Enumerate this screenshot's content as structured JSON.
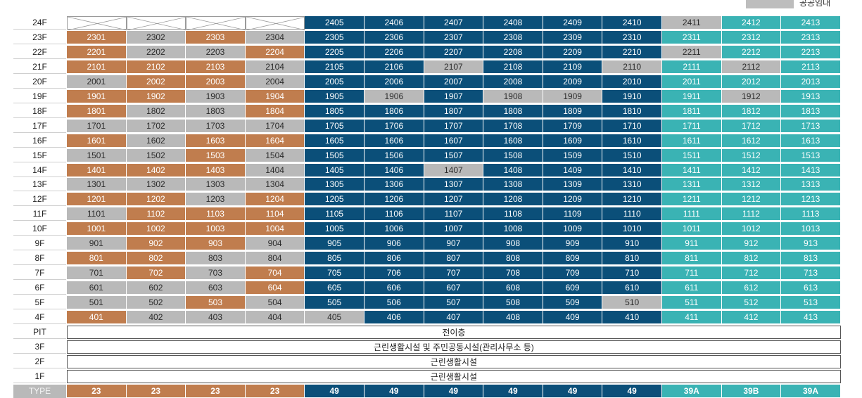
{
  "legend": {
    "label": "공공임대"
  },
  "columns": 13,
  "colors": {
    "orange": "#c07d4e",
    "gray": "#b9b9b9",
    "navy": "#0b4f79",
    "teal": "#3ab3b4"
  },
  "floors": [
    {
      "floor": "24F",
      "units": [
        "",
        "",
        "",
        "",
        "2405",
        "2406",
        "2407",
        "2408",
        "2409",
        "2410",
        "2411",
        "2412",
        "2413"
      ],
      "colors": [
        "e",
        "e",
        "e",
        "e",
        "n",
        "n",
        "n",
        "n",
        "n",
        "n",
        "g",
        "t",
        "t"
      ]
    },
    {
      "floor": "23F",
      "units": [
        "2301",
        "2302",
        "2303",
        "2304",
        "2305",
        "2306",
        "2307",
        "2308",
        "2309",
        "2310",
        "2311",
        "2312",
        "2313"
      ],
      "colors": [
        "o",
        "g",
        "o",
        "g",
        "n",
        "n",
        "n",
        "n",
        "n",
        "n",
        "t",
        "t",
        "t"
      ]
    },
    {
      "floor": "22F",
      "units": [
        "2201",
        "2202",
        "2203",
        "2204",
        "2205",
        "2206",
        "2207",
        "2208",
        "2209",
        "2210",
        "2211",
        "2212",
        "2213"
      ],
      "colors": [
        "o",
        "g",
        "g",
        "o",
        "n",
        "n",
        "n",
        "n",
        "n",
        "n",
        "g",
        "t",
        "t"
      ]
    },
    {
      "floor": "21F",
      "units": [
        "2101",
        "2102",
        "2103",
        "2104",
        "2105",
        "2106",
        "2107",
        "2108",
        "2109",
        "2110",
        "2111",
        "2112",
        "2113"
      ],
      "colors": [
        "o",
        "o",
        "o",
        "g",
        "n",
        "n",
        "g",
        "n",
        "n",
        "g",
        "t",
        "g",
        "t"
      ]
    },
    {
      "floor": "20F",
      "units": [
        "2001",
        "2002",
        "2003",
        "2004",
        "2005",
        "2006",
        "2007",
        "2008",
        "2009",
        "2010",
        "2011",
        "2012",
        "2013"
      ],
      "colors": [
        "g",
        "o",
        "o",
        "g",
        "n",
        "n",
        "n",
        "n",
        "n",
        "n",
        "t",
        "t",
        "t"
      ]
    },
    {
      "floor": "19F",
      "units": [
        "1901",
        "1902",
        "1903",
        "1904",
        "1905",
        "1906",
        "1907",
        "1908",
        "1909",
        "1910",
        "1911",
        "1912",
        "1913"
      ],
      "colors": [
        "o",
        "o",
        "g",
        "o",
        "n",
        "g",
        "n",
        "g",
        "g",
        "n",
        "t",
        "g",
        "t"
      ]
    },
    {
      "floor": "18F",
      "units": [
        "1801",
        "1802",
        "1803",
        "1804",
        "1805",
        "1806",
        "1807",
        "1808",
        "1809",
        "1810",
        "1811",
        "1812",
        "1813"
      ],
      "colors": [
        "o",
        "g",
        "g",
        "o",
        "n",
        "n",
        "n",
        "n",
        "n",
        "n",
        "t",
        "t",
        "t"
      ]
    },
    {
      "floor": "17F",
      "units": [
        "1701",
        "1702",
        "1703",
        "1704",
        "1705",
        "1706",
        "1707",
        "1708",
        "1709",
        "1710",
        "1711",
        "1712",
        "1713"
      ],
      "colors": [
        "g",
        "g",
        "g",
        "g",
        "n",
        "n",
        "n",
        "n",
        "n",
        "n",
        "t",
        "t",
        "t"
      ]
    },
    {
      "floor": "16F",
      "units": [
        "1601",
        "1602",
        "1603",
        "1604",
        "1605",
        "1606",
        "1607",
        "1608",
        "1609",
        "1610",
        "1611",
        "1612",
        "1613"
      ],
      "colors": [
        "o",
        "g",
        "o",
        "o",
        "n",
        "n",
        "n",
        "n",
        "n",
        "n",
        "t",
        "t",
        "t"
      ]
    },
    {
      "floor": "15F",
      "units": [
        "1501",
        "1502",
        "1503",
        "1504",
        "1505",
        "1506",
        "1507",
        "1508",
        "1509",
        "1510",
        "1511",
        "1512",
        "1513"
      ],
      "colors": [
        "g",
        "g",
        "o",
        "g",
        "n",
        "n",
        "n",
        "n",
        "n",
        "n",
        "t",
        "t",
        "t"
      ]
    },
    {
      "floor": "14F",
      "units": [
        "1401",
        "1402",
        "1403",
        "1404",
        "1405",
        "1406",
        "1407",
        "1408",
        "1409",
        "1410",
        "1411",
        "1412",
        "1413"
      ],
      "colors": [
        "o",
        "o",
        "o",
        "g",
        "n",
        "n",
        "g",
        "n",
        "n",
        "n",
        "t",
        "t",
        "t"
      ]
    },
    {
      "floor": "13F",
      "units": [
        "1301",
        "1302",
        "1303",
        "1304",
        "1305",
        "1306",
        "1307",
        "1308",
        "1309",
        "1310",
        "1311",
        "1312",
        "1313"
      ],
      "colors": [
        "g",
        "g",
        "g",
        "g",
        "n",
        "n",
        "n",
        "n",
        "n",
        "n",
        "t",
        "t",
        "t"
      ]
    },
    {
      "floor": "12F",
      "units": [
        "1201",
        "1202",
        "1203",
        "1204",
        "1205",
        "1206",
        "1207",
        "1208",
        "1209",
        "1210",
        "1211",
        "1212",
        "1213"
      ],
      "colors": [
        "o",
        "o",
        "g",
        "o",
        "n",
        "n",
        "n",
        "n",
        "n",
        "n",
        "t",
        "t",
        "t"
      ]
    },
    {
      "floor": "11F",
      "units": [
        "1101",
        "1102",
        "1103",
        "1104",
        "1105",
        "1106",
        "1107",
        "1108",
        "1109",
        "1110",
        "1111",
        "1112",
        "1113"
      ],
      "colors": [
        "g",
        "o",
        "o",
        "o",
        "n",
        "n",
        "n",
        "n",
        "n",
        "n",
        "t",
        "t",
        "t"
      ]
    },
    {
      "floor": "10F",
      "units": [
        "1001",
        "1002",
        "1003",
        "1004",
        "1005",
        "1006",
        "1007",
        "1008",
        "1009",
        "1010",
        "1011",
        "1012",
        "1013"
      ],
      "colors": [
        "o",
        "o",
        "o",
        "o",
        "n",
        "n",
        "n",
        "n",
        "n",
        "n",
        "t",
        "t",
        "t"
      ]
    },
    {
      "floor": "9F",
      "units": [
        "901",
        "902",
        "903",
        "904",
        "905",
        "906",
        "907",
        "908",
        "909",
        "910",
        "911",
        "912",
        "913"
      ],
      "colors": [
        "g",
        "o",
        "o",
        "g",
        "n",
        "n",
        "n",
        "n",
        "n",
        "n",
        "t",
        "t",
        "t"
      ]
    },
    {
      "floor": "8F",
      "units": [
        "801",
        "802",
        "803",
        "804",
        "805",
        "806",
        "807",
        "808",
        "809",
        "810",
        "811",
        "812",
        "813"
      ],
      "colors": [
        "o",
        "o",
        "g",
        "g",
        "n",
        "n",
        "n",
        "n",
        "n",
        "n",
        "t",
        "t",
        "t"
      ]
    },
    {
      "floor": "7F",
      "units": [
        "701",
        "702",
        "703",
        "704",
        "705",
        "706",
        "707",
        "708",
        "709",
        "710",
        "711",
        "712",
        "713"
      ],
      "colors": [
        "g",
        "o",
        "g",
        "o",
        "n",
        "n",
        "n",
        "n",
        "n",
        "n",
        "t",
        "t",
        "t"
      ]
    },
    {
      "floor": "6F",
      "units": [
        "601",
        "602",
        "603",
        "604",
        "605",
        "606",
        "607",
        "608",
        "609",
        "610",
        "611",
        "612",
        "613"
      ],
      "colors": [
        "g",
        "g",
        "g",
        "o",
        "n",
        "n",
        "n",
        "n",
        "n",
        "n",
        "t",
        "t",
        "t"
      ]
    },
    {
      "floor": "5F",
      "units": [
        "501",
        "502",
        "503",
        "504",
        "505",
        "506",
        "507",
        "508",
        "509",
        "510",
        "511",
        "512",
        "513"
      ],
      "colors": [
        "g",
        "g",
        "o",
        "g",
        "n",
        "n",
        "n",
        "n",
        "n",
        "g",
        "t",
        "t",
        "t"
      ]
    },
    {
      "floor": "4F",
      "units": [
        "401",
        "402",
        "403",
        "404",
        "405",
        "406",
        "407",
        "408",
        "409",
        "410",
        "411",
        "412",
        "413"
      ],
      "colors": [
        "o",
        "g",
        "g",
        "g",
        "g",
        "n",
        "n",
        "n",
        "n",
        "n",
        "t",
        "t",
        "t"
      ]
    }
  ],
  "special_floors": [
    {
      "floor": "PIT",
      "label": "전이층"
    },
    {
      "floor": "3F",
      "label": "근린생활시설 및 주민공동시설(관리사무소 등)"
    },
    {
      "floor": "2F",
      "label": "근린생활시설"
    },
    {
      "floor": "1F",
      "label": "근린생활시설"
    }
  ],
  "type_row": {
    "label": "TYPE",
    "values": [
      "23",
      "23",
      "23",
      "23",
      "49",
      "49",
      "49",
      "49",
      "49",
      "49",
      "39A",
      "39B",
      "39A"
    ],
    "colors": [
      "o",
      "o",
      "o",
      "o",
      "n",
      "n",
      "n",
      "n",
      "n",
      "n",
      "t",
      "t",
      "t"
    ]
  }
}
